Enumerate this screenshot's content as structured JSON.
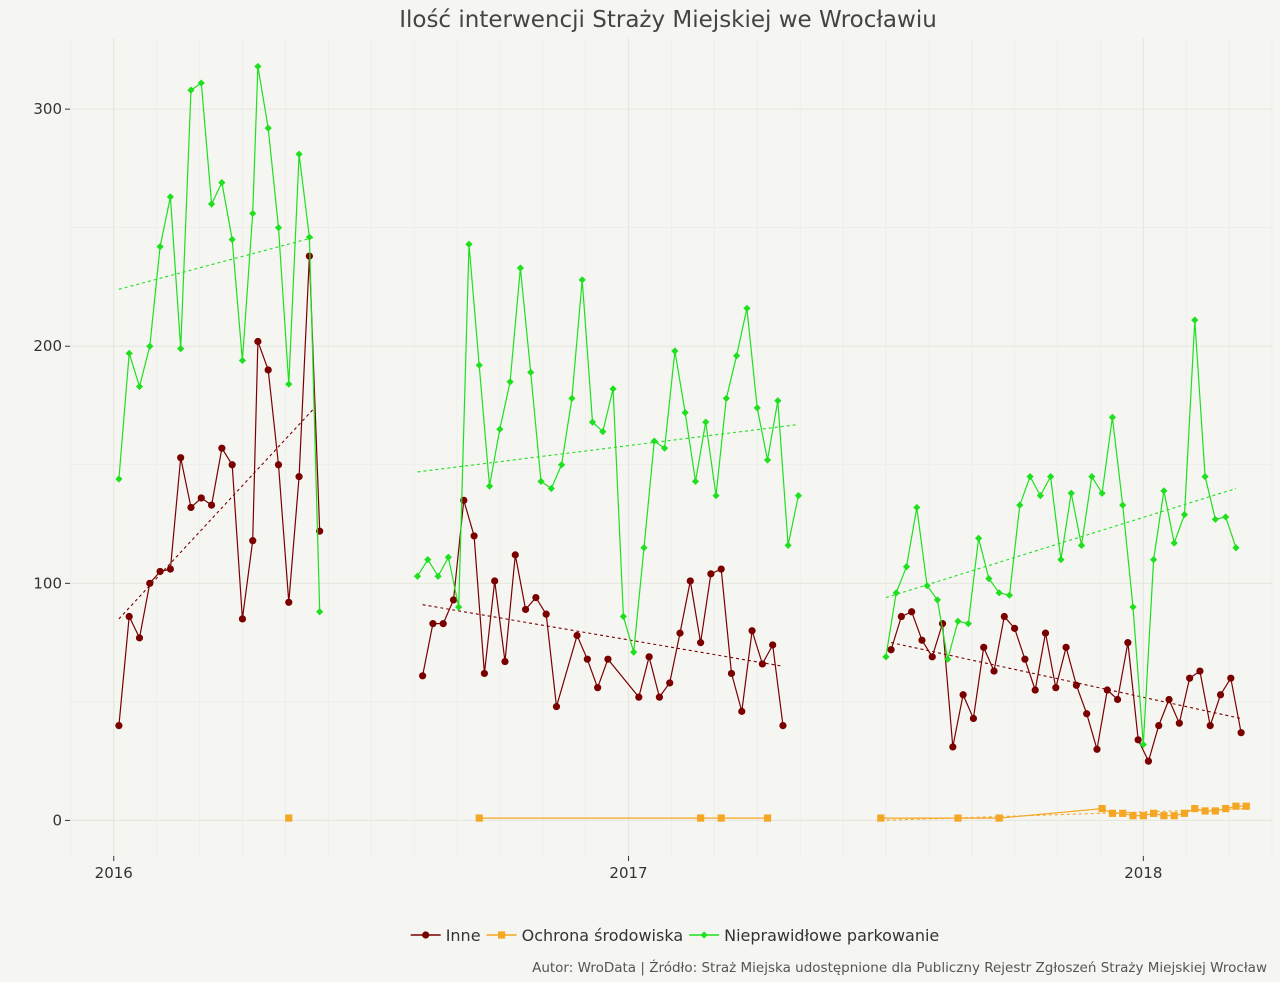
{
  "chart_data": {
    "type": "line",
    "title": "Ilość interwencji Straży Miejskiej we Wrocławiu",
    "caption": "Autor: WroData | Źródło: Straż Miejska udostępnione dla Publiczny Rejestr Zgłoszeń Straży Miejskiej Wrocław",
    "xlabel": "",
    "ylabel": "",
    "x_ticks": [
      {
        "label": "2016",
        "value": 2016.0
      },
      {
        "label": "2017",
        "value": 2017.0
      },
      {
        "label": "2018",
        "value": 2018.0
      }
    ],
    "y_ticks": [
      0,
      100,
      200,
      300
    ],
    "xlim": [
      2015.915,
      2018.25
    ],
    "ylim": [
      -15,
      330
    ],
    "grid": true,
    "legend_position": "bottom",
    "series": [
      {
        "name": "Inne",
        "color": "#7a0000",
        "marker": "circle",
        "segments": [
          [
            [
              2016.01,
              40
            ],
            [
              2016.03,
              86
            ],
            [
              2016.05,
              77
            ],
            [
              2016.07,
              100
            ],
            [
              2016.09,
              105
            ],
            [
              2016.11,
              106
            ],
            [
              2016.13,
              153
            ],
            [
              2016.15,
              132
            ],
            [
              2016.17,
              136
            ],
            [
              2016.19,
              133
            ],
            [
              2016.21,
              157
            ],
            [
              2016.23,
              150
            ],
            [
              2016.25,
              85
            ],
            [
              2016.27,
              118
            ],
            [
              2016.28,
              202
            ],
            [
              2016.3,
              190
            ],
            [
              2016.32,
              150
            ],
            [
              2016.34,
              92
            ],
            [
              2016.36,
              145
            ],
            [
              2016.38,
              238
            ],
            [
              2016.4,
              122
            ]
          ],
          [
            [
              2016.6,
              61
            ],
            [
              2016.62,
              83
            ],
            [
              2016.64,
              83
            ],
            [
              2016.66,
              93
            ],
            [
              2016.68,
              135
            ],
            [
              2016.7,
              120
            ],
            [
              2016.72,
              62
            ],
            [
              2016.74,
              101
            ],
            [
              2016.76,
              67
            ],
            [
              2016.78,
              112
            ],
            [
              2016.8,
              89
            ],
            [
              2016.82,
              94
            ],
            [
              2016.84,
              87
            ],
            [
              2016.86,
              48
            ],
            [
              2016.9,
              78
            ],
            [
              2016.92,
              68
            ],
            [
              2016.94,
              56
            ],
            [
              2016.96,
              68
            ],
            [
              2017.02,
              52
            ],
            [
              2017.04,
              69
            ],
            [
              2017.06,
              52
            ],
            [
              2017.08,
              58
            ],
            [
              2017.1,
              79
            ],
            [
              2017.12,
              101
            ],
            [
              2017.14,
              75
            ],
            [
              2017.16,
              104
            ],
            [
              2017.18,
              106
            ],
            [
              2017.2,
              62
            ],
            [
              2017.22,
              46
            ],
            [
              2017.24,
              80
            ],
            [
              2017.26,
              66
            ],
            [
              2017.28,
              74
            ],
            [
              2017.3,
              40
            ]
          ],
          [
            [
              2017.51,
              72
            ],
            [
              2017.53,
              86
            ],
            [
              2017.55,
              88
            ],
            [
              2017.57,
              76
            ],
            [
              2017.59,
              69
            ],
            [
              2017.61,
              83
            ],
            [
              2017.63,
              31
            ],
            [
              2017.65,
              53
            ],
            [
              2017.67,
              43
            ],
            [
              2017.69,
              73
            ],
            [
              2017.71,
              63
            ],
            [
              2017.73,
              86
            ],
            [
              2017.75,
              81
            ],
            [
              2017.77,
              68
            ],
            [
              2017.79,
              55
            ],
            [
              2017.81,
              79
            ],
            [
              2017.83,
              56
            ],
            [
              2017.85,
              73
            ],
            [
              2017.87,
              57
            ],
            [
              2017.89,
              45
            ],
            [
              2017.91,
              30
            ],
            [
              2017.93,
              55
            ],
            [
              2017.95,
              51
            ],
            [
              2017.97,
              75
            ],
            [
              2017.99,
              34
            ],
            [
              2018.01,
              25
            ],
            [
              2018.03,
              40
            ],
            [
              2018.05,
              51
            ],
            [
              2018.07,
              41
            ],
            [
              2018.09,
              60
            ],
            [
              2018.11,
              63
            ],
            [
              2018.13,
              40
            ],
            [
              2018.15,
              53
            ],
            [
              2018.17,
              60
            ],
            [
              2018.19,
              37
            ]
          ]
        ],
        "trend": [
          [
            [
              2016.01,
              85
            ],
            [
              2016.39,
              174
            ]
          ],
          [
            [
              2016.6,
              91
            ],
            [
              2017.3,
              65
            ]
          ],
          [
            [
              2017.51,
              75
            ],
            [
              2018.19,
              43
            ]
          ]
        ]
      },
      {
        "name": "Ochrona środowiska",
        "color": "#f5a623",
        "marker": "square",
        "segments": [
          [
            [
              2016.34,
              1
            ]
          ],
          [
            [
              2016.71,
              1
            ],
            [
              2017.14,
              1
            ],
            [
              2017.18,
              1
            ],
            [
              2017.27,
              1
            ]
          ],
          [
            [
              2017.49,
              1
            ],
            [
              2017.64,
              1
            ],
            [
              2017.72,
              1
            ],
            [
              2017.92,
              5
            ],
            [
              2017.94,
              3
            ],
            [
              2017.96,
              3
            ],
            [
              2017.98,
              2
            ],
            [
              2018.0,
              2
            ],
            [
              2018.02,
              3
            ],
            [
              2018.04,
              2
            ],
            [
              2018.06,
              2
            ],
            [
              2018.08,
              3
            ],
            [
              2018.1,
              5
            ],
            [
              2018.12,
              4
            ],
            [
              2018.14,
              4
            ],
            [
              2018.16,
              5
            ],
            [
              2018.18,
              6
            ],
            [
              2018.2,
              6
            ]
          ]
        ],
        "trend": [
          [
            [
              2017.49,
              0
            ],
            [
              2018.2,
              5
            ]
          ]
        ]
      },
      {
        "name": "Nieprawidłowe parkowanie",
        "color": "#1ee01e",
        "marker": "diamond",
        "segments": [
          [
            [
              2016.01,
              144
            ],
            [
              2016.03,
              197
            ],
            [
              2016.05,
              183
            ],
            [
              2016.07,
              200
            ],
            [
              2016.09,
              242
            ],
            [
              2016.11,
              263
            ],
            [
              2016.13,
              199
            ],
            [
              2016.15,
              308
            ],
            [
              2016.17,
              311
            ],
            [
              2016.19,
              260
            ],
            [
              2016.21,
              269
            ],
            [
              2016.23,
              245
            ],
            [
              2016.25,
              194
            ],
            [
              2016.27,
              256
            ],
            [
              2016.28,
              318
            ],
            [
              2016.3,
              292
            ],
            [
              2016.32,
              250
            ],
            [
              2016.34,
              184
            ],
            [
              2016.36,
              281
            ],
            [
              2016.38,
              246
            ],
            [
              2016.4,
              88
            ]
          ],
          [
            [
              2016.59,
              103
            ],
            [
              2016.61,
              110
            ],
            [
              2016.63,
              103
            ],
            [
              2016.65,
              111
            ],
            [
              2016.67,
              90
            ],
            [
              2016.69,
              243
            ],
            [
              2016.71,
              192
            ],
            [
              2016.73,
              141
            ],
            [
              2016.75,
              165
            ],
            [
              2016.77,
              185
            ],
            [
              2016.79,
              233
            ],
            [
              2016.81,
              189
            ],
            [
              2016.83,
              143
            ],
            [
              2016.85,
              140
            ],
            [
              2016.87,
              150
            ],
            [
              2016.89,
              178
            ],
            [
              2016.91,
              228
            ],
            [
              2016.93,
              168
            ],
            [
              2016.95,
              164
            ],
            [
              2016.97,
              182
            ],
            [
              2016.99,
              86
            ],
            [
              2017.01,
              71
            ],
            [
              2017.03,
              115
            ],
            [
              2017.05,
              160
            ],
            [
              2017.07,
              157
            ],
            [
              2017.09,
              198
            ],
            [
              2017.11,
              172
            ],
            [
              2017.13,
              143
            ],
            [
              2017.15,
              168
            ],
            [
              2017.17,
              137
            ],
            [
              2017.19,
              178
            ],
            [
              2017.21,
              196
            ],
            [
              2017.23,
              216
            ],
            [
              2017.25,
              174
            ],
            [
              2017.27,
              152
            ],
            [
              2017.29,
              177
            ],
            [
              2017.31,
              116
            ],
            [
              2017.33,
              137
            ]
          ],
          [
            [
              2017.5,
              69
            ],
            [
              2017.52,
              96
            ],
            [
              2017.54,
              107
            ],
            [
              2017.56,
              132
            ],
            [
              2017.58,
              99
            ],
            [
              2017.6,
              93
            ],
            [
              2017.62,
              68
            ],
            [
              2017.64,
              84
            ],
            [
              2017.66,
              83
            ],
            [
              2017.68,
              119
            ],
            [
              2017.7,
              102
            ],
            [
              2017.72,
              96
            ],
            [
              2017.74,
              95
            ],
            [
              2017.76,
              133
            ],
            [
              2017.78,
              145
            ],
            [
              2017.8,
              137
            ],
            [
              2017.82,
              145
            ],
            [
              2017.84,
              110
            ],
            [
              2017.86,
              138
            ],
            [
              2017.88,
              116
            ],
            [
              2017.9,
              145
            ],
            [
              2017.92,
              138
            ],
            [
              2017.94,
              170
            ],
            [
              2017.96,
              133
            ],
            [
              2017.98,
              90
            ],
            [
              2018.0,
              32
            ],
            [
              2018.02,
              110
            ],
            [
              2018.04,
              139
            ],
            [
              2018.06,
              117
            ],
            [
              2018.08,
              129
            ],
            [
              2018.1,
              211
            ],
            [
              2018.12,
              145
            ],
            [
              2018.14,
              127
            ],
            [
              2018.16,
              128
            ],
            [
              2018.18,
              115
            ]
          ]
        ],
        "trend": [
          [
            [
              2016.01,
              224
            ],
            [
              2016.39,
              246
            ]
          ],
          [
            [
              2016.59,
              147
            ],
            [
              2017.33,
              167
            ]
          ],
          [
            [
              2017.5,
              94
            ],
            [
              2018.18,
              140
            ]
          ]
        ]
      }
    ]
  }
}
